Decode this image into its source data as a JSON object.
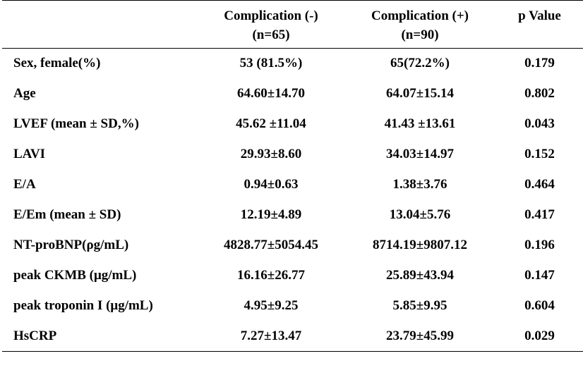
{
  "table": {
    "headers": {
      "col0": "",
      "col1_line1": "Complication (-)",
      "col1_line2": "(n=65)",
      "col2_line1": "Complication (+)",
      "col2_line2": "(n=90)",
      "col3": "p Value"
    },
    "rows": [
      {
        "label": "Sex, female(%)",
        "neg": "53 (81.5%)",
        "pos": "65(72.2%)",
        "p": "0.179"
      },
      {
        "label": "Age",
        "neg": "64.60±14.70",
        "pos": "64.07±15.14",
        "p": "0.802"
      },
      {
        "label": "LVEF (mean ± SD,%)",
        "neg": "45.62 ±11.04",
        "pos": "41.43 ±13.61",
        "p": "0.043"
      },
      {
        "label": "LAVI",
        "neg": "29.93±8.60",
        "pos": "34.03±14.97",
        "p": "0.152"
      },
      {
        "label": "E/A",
        "neg": "0.94±0.63",
        "pos": "1.38±3.76",
        "p": "0.464"
      },
      {
        "label": "E/Em (mean ± SD)",
        "neg": "12.19±4.89",
        "pos": "13.04±5.76",
        "p": "0.417"
      },
      {
        "label": "NT-proBNP(ρg/mL)",
        "neg": "4828.77±5054.45",
        "pos": "8714.19±9807.12",
        "p": "0.196"
      },
      {
        "label": "peak CKMB (μg/mL)",
        "neg": "16.16±26.77",
        "pos": "25.89±43.94",
        "p": "0.147"
      },
      {
        "label": "peak troponin I (μg/mL)",
        "neg": "4.95±9.25",
        "pos": "5.85±9.95",
        "p": "0.604"
      },
      {
        "label": "HsCRP",
        "neg": "7.27±13.47",
        "pos": "23.79±45.99",
        "p": "0.029"
      }
    ]
  }
}
